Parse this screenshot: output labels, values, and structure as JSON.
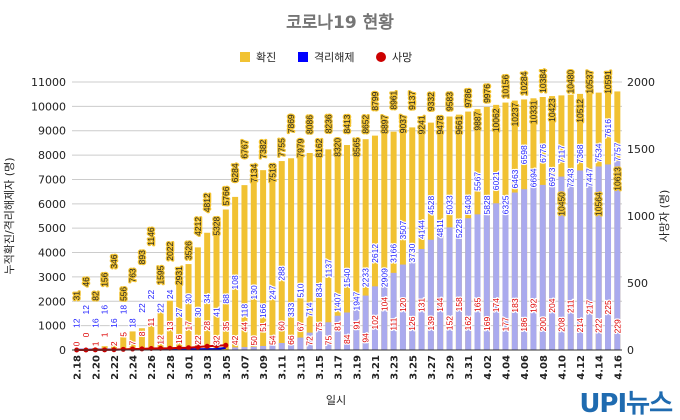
{
  "chart_data": {
    "type": "bar",
    "title": "코로나19 현황",
    "xlabel": "일시",
    "ylabel": "누적확진/격리해제자 (명)",
    "y2label": "사망자 (명)",
    "ylim": [
      0,
      11000
    ],
    "y2lim": [
      0,
      2000
    ],
    "yticks": [
      0,
      1000,
      2000,
      3000,
      4000,
      5000,
      6000,
      7000,
      8000,
      9000,
      10000,
      11000
    ],
    "y2ticks": [
      0,
      500,
      1000,
      1500,
      2000
    ],
    "grid": true,
    "legend_position": "top",
    "x": [
      "2.18",
      "2.19",
      "2.20",
      "2.21",
      "2.22",
      "2.23",
      "2.24",
      "2.25",
      "2.26",
      "2.27",
      "2.28",
      "2.29",
      "3.01",
      "3.02",
      "3.03",
      "3.04",
      "3.05",
      "3.06",
      "3.07",
      "3.08",
      "3.09",
      "3.10",
      "3.11",
      "3.12",
      "3.13",
      "3.14",
      "3.15",
      "3.16",
      "3.17",
      "3.18",
      "3.19",
      "3.20",
      "3.21",
      "3.22",
      "3.23",
      "3.24",
      "3.25",
      "3.26",
      "3.27",
      "3.28",
      "3.29",
      "3.30",
      "3.31",
      "4.01",
      "4.02",
      "4.03",
      "4.04",
      "4.05",
      "4.06",
      "4.07",
      "4.08",
      "4.09",
      "4.10",
      "4.11",
      "4.12",
      "4.13",
      "4.14",
      "4.15",
      "4.16"
    ],
    "series": [
      {
        "name": "확진",
        "color": "#f1c232",
        "axis": "left",
        "values": [
          31,
          46,
          82,
          156,
          346,
          556,
          763,
          893,
          1146,
          1595,
          2022,
          2931,
          3526,
          4212,
          4812,
          5328,
          5766,
          6284,
          6767,
          7134,
          7382,
          7513,
          7755,
          7869,
          7979,
          8086,
          8162,
          8236,
          8320,
          8413,
          8565,
          8652,
          8799,
          8897,
          8961,
          9037,
          9137,
          9241,
          9332,
          9478,
          9583,
          9661,
          9786,
          9887,
          9976,
          10062,
          10156,
          10237,
          10284,
          10331,
          10384,
          10423,
          10450,
          10480,
          10512,
          10537,
          10564,
          10591,
          10613
        ]
      },
      {
        "name": "격리해제",
        "color": "#0000ff",
        "axis": "left",
        "values": [
          12,
          12,
          16,
          16,
          16,
          18,
          18,
          22,
          22,
          22,
          24,
          27,
          30,
          30,
          34,
          41,
          88,
          108,
          118,
          130,
          166,
          247,
          288,
          333,
          510,
          714,
          834,
          1137,
          1407,
          1540,
          1947,
          2233,
          2612,
          2909,
          3166,
          3507,
          3730,
          4144,
          4528,
          4811,
          5033,
          5228,
          5408,
          5567,
          5828,
          6021,
          6325,
          6463,
          6598,
          6694,
          6776,
          6973,
          7117,
          7243,
          7368,
          7447,
          7534,
          7616,
          7757
        ]
      },
      {
        "name": "사망",
        "color": "#cc0000",
        "axis": "right",
        "values": [
          0,
          0,
          1,
          1,
          2,
          5,
          7,
          8,
          11,
          12,
          13,
          16,
          17,
          22,
          28,
          32,
          35,
          42,
          44,
          50,
          51,
          54,
          60,
          66,
          67,
          72,
          75,
          75,
          81,
          84,
          91,
          94,
          102,
          104,
          111,
          120,
          126,
          131,
          139,
          144,
          152,
          158,
          162,
          165,
          169,
          174,
          177,
          183,
          186,
          192,
          200,
          204,
          208,
          211,
          214,
          217,
          222,
          225,
          229
        ]
      }
    ]
  },
  "logo": "UPI뉴스"
}
